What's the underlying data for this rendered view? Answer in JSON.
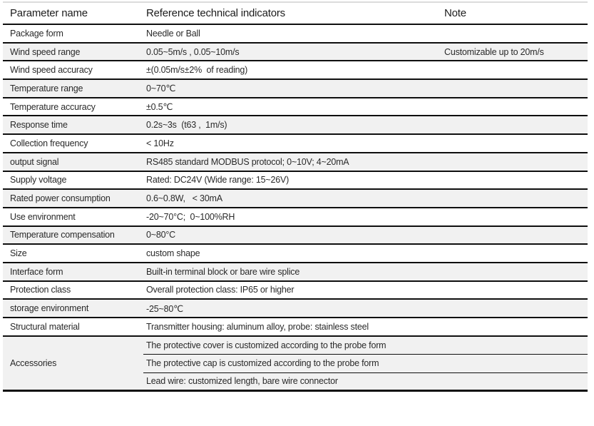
{
  "table": {
    "headers": {
      "param": "Parameter name",
      "value": "Reference technical indicators",
      "note": "Note"
    },
    "rows": [
      {
        "param": "Package form",
        "value": "Needle or Ball",
        "note": ""
      },
      {
        "param": "Wind speed range",
        "value": "0.05~5m/s , 0.05~10m/s",
        "note": "Customizable up to 20m/s"
      },
      {
        "param": "Wind speed accuracy",
        "value": "±(0.05m/s±2%  of reading)",
        "note": ""
      },
      {
        "param": "Temperature range",
        "value": "0~70℃",
        "note": ""
      },
      {
        "param": "Temperature accuracy",
        "value": "±0.5℃",
        "note": ""
      },
      {
        "param": "Response time",
        "value": "0.2s~3s  (t63 ,  1m/s)",
        "note": ""
      },
      {
        "param": "Collection frequency",
        "value": "< 10Hz",
        "note": ""
      },
      {
        "param": "output signal",
        "value": "RS485 standard MODBUS protocol; 0~10V; 4~20mA",
        "note": ""
      },
      {
        "param": "Supply voltage",
        "value": "Rated: DC24V (Wide range: 15~26V)",
        "note": ""
      },
      {
        "param": "Rated power consumption",
        "value": "0.6~0.8W,   < 30mA",
        "note": ""
      },
      {
        "param": "Use environment",
        "value": "-20~70°C;  0~100%RH",
        "note": ""
      },
      {
        "param": "Temperature compensation",
        "value": "0~80°C",
        "note": ""
      },
      {
        "param": "Size",
        "value": "custom shape",
        "note": ""
      },
      {
        "param": "Interface form",
        "value": "Built-in terminal block or bare wire splice",
        "note": ""
      },
      {
        "param": "Protection class",
        "value": "Overall protection class: IP65 or higher",
        "note": ""
      },
      {
        "param": "storage environment",
        "value": "-25~80℃",
        "note": ""
      },
      {
        "param": "Structural material",
        "value": "Transmitter housing: aluminum alloy, probe: stainless steel",
        "note": ""
      }
    ],
    "accessories": {
      "param": "Accessories",
      "items": [
        "The protective cover is customized according to the probe form",
        "The protective cap is customized according to the probe form",
        "Lead wire: customized length, bare wire connector"
      ]
    },
    "colors": {
      "row_alt_bg": "#f1f1f1",
      "rule": "#0f0f0f",
      "top_rule": "#dcdcdc"
    }
  }
}
